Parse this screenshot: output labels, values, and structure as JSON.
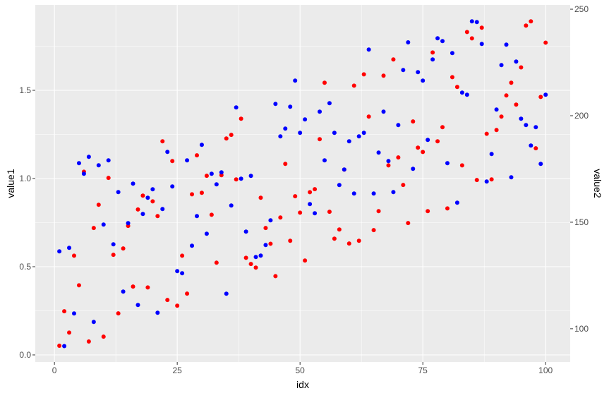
{
  "chart_data": {
    "type": "scatter",
    "title": "",
    "xlabel": "idx",
    "ylabel": "value1",
    "y2label": "value2",
    "xlim": [
      -3.9,
      105.0
    ],
    "ylim": [
      -0.04,
      1.984
    ],
    "y2lim": [
      84.4,
      252.0
    ],
    "x_ticks": [
      0,
      25,
      50,
      75,
      100
    ],
    "x_tick_labels": [
      "0",
      "25",
      "50",
      "75",
      "100"
    ],
    "y_ticks": [
      0.0,
      0.5,
      1.0,
      1.5
    ],
    "y_tick_labels": [
      "0.0",
      "0.5",
      "1.0",
      "1.5"
    ],
    "y2_ticks": [
      100,
      150,
      200,
      250
    ],
    "y2_tick_labels": [
      "100",
      "150",
      "200",
      "250"
    ],
    "grid": true,
    "legend": "none",
    "background": "#ebebeb",
    "x": [
      1,
      2,
      3,
      4,
      5,
      6,
      7,
      8,
      9,
      10,
      11,
      12,
      13,
      14,
      15,
      16,
      17,
      18,
      19,
      20,
      21,
      22,
      23,
      24,
      25,
      26,
      27,
      28,
      29,
      30,
      31,
      32,
      33,
      34,
      35,
      36,
      37,
      38,
      39,
      40,
      41,
      42,
      43,
      44,
      45,
      46,
      47,
      48,
      49,
      50,
      51,
      52,
      53,
      54,
      55,
      56,
      57,
      58,
      59,
      60,
      61,
      62,
      63,
      64,
      65,
      66,
      67,
      68,
      69,
      70,
      71,
      72,
      73,
      74,
      75,
      76,
      77,
      78,
      79,
      80,
      81,
      82,
      83,
      84,
      85,
      86,
      87,
      88,
      89,
      90,
      91,
      92,
      93,
      94,
      95,
      96,
      97,
      98,
      99,
      100
    ],
    "series": [
      {
        "name": "value1",
        "axis": "left",
        "color": "#0000ff",
        "values": [
          0.587,
          0.05,
          0.607,
          0.235,
          1.087,
          1.027,
          1.123,
          0.187,
          1.075,
          0.739,
          1.103,
          0.627,
          0.923,
          0.359,
          0.747,
          0.971,
          0.283,
          0.799,
          0.891,
          0.939,
          0.239,
          0.827,
          1.151,
          0.955,
          0.475,
          0.463,
          1.103,
          0.619,
          0.787,
          1.191,
          0.687,
          1.027,
          0.967,
          1.035,
          0.347,
          0.847,
          1.403,
          0.999,
          0.699,
          1.015,
          0.555,
          0.563,
          0.623,
          0.763,
          1.423,
          1.239,
          1.283,
          1.407,
          1.555,
          1.259,
          1.335,
          0.855,
          0.803,
          1.379,
          1.103,
          1.427,
          1.259,
          0.963,
          1.051,
          1.211,
          0.915,
          1.239,
          1.259,
          1.731,
          0.915,
          1.147,
          1.379,
          1.099,
          0.923,
          1.303,
          1.615,
          1.772,
          1.055,
          1.603,
          1.555,
          1.219,
          1.675,
          1.795,
          1.779,
          1.087,
          1.711,
          0.863,
          1.487,
          1.475,
          1.891,
          1.887,
          1.763,
          0.983,
          1.139,
          1.391,
          1.643,
          1.759,
          1.007,
          1.663,
          1.339,
          1.303,
          1.187,
          1.291,
          1.083,
          1.475
        ]
      },
      {
        "name": "value2",
        "axis": "right",
        "color": "#ff0000",
        "values": [
          92.0,
          108.2,
          98.2,
          134.3,
          120.4,
          173.7,
          94.0,
          147.3,
          158.2,
          96.3,
          170.8,
          134.7,
          107.2,
          137.7,
          148.3,
          119.8,
          156.0,
          162.5,
          119.4,
          159.8,
          152.9,
          188.0,
          113.5,
          178.7,
          110.8,
          134.3,
          116.5,
          163.1,
          181.4,
          163.8,
          171.8,
          153.5,
          131.0,
          172.1,
          189.3,
          191.0,
          170.1,
          198.6,
          133.3,
          130.4,
          128.7,
          161.5,
          147.3,
          139.9,
          124.7,
          152.2,
          177.4,
          141.3,
          162.2,
          154.5,
          132.0,
          164.1,
          165.5,
          189.0,
          215.5,
          154.9,
          142.3,
          146.6,
          174.7,
          140.0,
          214.1,
          141.3,
          219.4,
          199.6,
          146.3,
          155.2,
          218.8,
          176.7,
          226.4,
          180.4,
          167.5,
          149.6,
          197.3,
          185.0,
          183.0,
          155.2,
          229.7,
          188.0,
          194.6,
          156.5,
          218.1,
          213.5,
          176.7,
          239.3,
          236.3,
          169.8,
          241.3,
          191.5,
          170.1,
          193.3,
          199.6,
          209.5,
          215.5,
          205.2,
          222.7,
          242.3,
          244.3,
          184.7,
          208.8,
          234.3
        ]
      }
    ]
  },
  "labels": {
    "xlabel": "idx",
    "ylabel": "value1",
    "y2label": "value2"
  }
}
